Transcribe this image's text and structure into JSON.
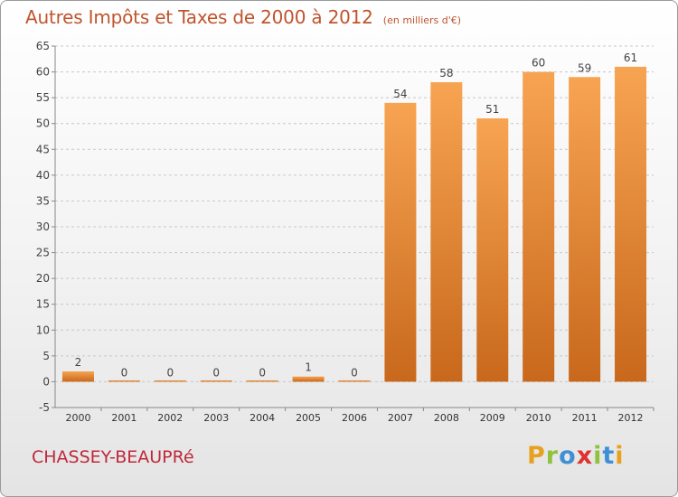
{
  "chart_data": {
    "type": "bar",
    "title": "Autres Impôts et Taxes de 2000 à 2012",
    "unit_label": "(en milliers d'€)",
    "categories": [
      "2000",
      "2001",
      "2002",
      "2003",
      "2004",
      "2005",
      "2006",
      "2007",
      "2008",
      "2009",
      "2010",
      "2011",
      "2012"
    ],
    "values": [
      2,
      0,
      0,
      0,
      0,
      1,
      0,
      54,
      58,
      51,
      60,
      59,
      61
    ],
    "ylim": [
      -5,
      65
    ],
    "yticks": [
      -5,
      0,
      5,
      10,
      15,
      20,
      25,
      30,
      35,
      40,
      45,
      50,
      55,
      60,
      65
    ],
    "grid": true,
    "legend": "none",
    "bar_color_top": "#f7a452",
    "bar_color_bottom": "#c8681c"
  },
  "footer": {
    "commune": "CHASSEY-BEAUPRé",
    "brand_letters": [
      "P",
      "r",
      "o",
      "x",
      "i",
      "t",
      "i"
    ],
    "brand_colors": [
      "#e8a11f",
      "#8fc23f",
      "#3f8fd6",
      "#e0312e",
      "#8fc23f",
      "#3f8fd6",
      "#e8a11f"
    ]
  },
  "colors": {
    "title": "#c0542d",
    "commune": "#c0283a"
  }
}
